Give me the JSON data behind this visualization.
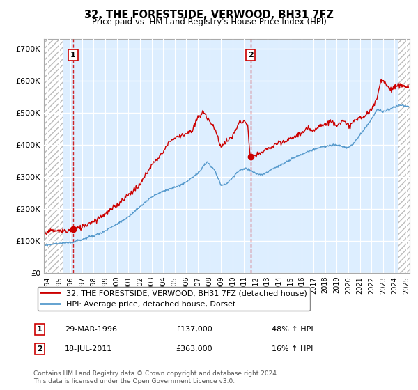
{
  "title": "32, THE FORESTSIDE, VERWOOD, BH31 7FZ",
  "subtitle": "Price paid vs. HM Land Registry's House Price Index (HPI)",
  "red_label": "32, THE FORESTSIDE, VERWOOD, BH31 7FZ (detached house)",
  "blue_label": "HPI: Average price, detached house, Dorset",
  "annotation1_text": "29-MAR-1996",
  "annotation1_value_text": "£137,000",
  "annotation1_hpi_text": "48% ↑ HPI",
  "annotation1_year": 1996.23,
  "annotation1_price": 137000,
  "annotation2_text": "18-JUL-2011",
  "annotation2_value_text": "£363,000",
  "annotation2_hpi_text": "16% ↑ HPI",
  "annotation2_year": 2011.55,
  "annotation2_price": 363000,
  "footer": "Contains HM Land Registry data © Crown copyright and database right 2024.\nThis data is licensed under the Open Government Licence v3.0.",
  "ylim": [
    0,
    730000
  ],
  "yticks": [
    0,
    100000,
    200000,
    300000,
    400000,
    500000,
    600000,
    700000
  ],
  "ytick_labels": [
    "£0",
    "£100K",
    "£200K",
    "£300K",
    "£400K",
    "£500K",
    "£600K",
    "£700K"
  ],
  "red_color": "#cc0000",
  "blue_color": "#5599cc",
  "plot_bg": "#ddeeff",
  "hatch_color": "#bbbbbb",
  "grid_color": "#ffffff",
  "xlim_left": 1993.7,
  "xlim_right": 2025.3,
  "hatch_left_end": 1995.4,
  "hatch_right_start": 2024.3,
  "xtick_years": [
    1994,
    1995,
    1996,
    1997,
    1998,
    1999,
    2000,
    2001,
    2002,
    2003,
    2004,
    2005,
    2006,
    2007,
    2008,
    2009,
    2010,
    2011,
    2012,
    2013,
    2014,
    2015,
    2016,
    2017,
    2018,
    2019,
    2020,
    2021,
    2022,
    2023,
    2024,
    2025
  ]
}
